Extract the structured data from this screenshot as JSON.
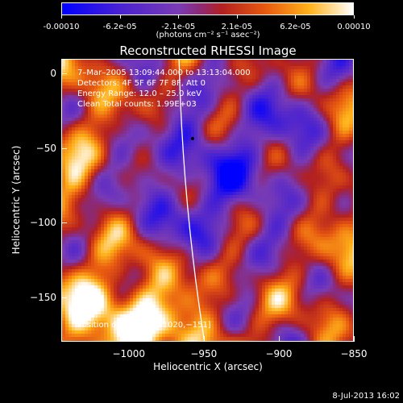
{
  "colorbar": {
    "ticks": [
      "-0.00010",
      "-6.2e-05",
      "-2.1e-05",
      "2.1e-05",
      "6.2e-05",
      "0.00010"
    ],
    "unit": "(photons cm⁻² s⁻¹ asec⁻²)",
    "range": [
      -0.0001,
      0.0001
    ]
  },
  "chart_data": {
    "type": "heatmap",
    "title": "Reconstructed RHESSI Image",
    "xlabel": "Heliocentric X (arcsec)",
    "ylabel": "Heliocentric Y (arcsec)",
    "xlim": [
      -1045,
      -850
    ],
    "ylim": [
      -180,
      10
    ],
    "x_ticks": [
      -1000,
      -950,
      -900,
      -850
    ],
    "x_tick_labels": [
      "−1000",
      "−950",
      "−900",
      "−850"
    ],
    "y_ticks": [
      0,
      -50,
      -100,
      -150
    ],
    "y_tick_labels": [
      "0",
      "−50",
      "−100",
      "−150"
    ],
    "peak": [
      -1020,
      -151
    ],
    "marked_point": [
      -958,
      -43
    ],
    "annotations": {
      "time": "7–Mar–2005 13:09:44.000 to 13:13:04.000",
      "detectors": "Detectors: 4F 5F 6F 7F 8F, Att 0",
      "energy": "Energy Range: 12.0 – 25.0 keV",
      "clean": "Clean    Total counts: 1.99E+03",
      "peak": "Position of Peak = [−1020,−151]"
    }
  },
  "timestamp": "8-Jul-2013 16:02",
  "colors": {
    "background": "#000000",
    "axes": "#ffffff",
    "limb": "#ffffff"
  }
}
